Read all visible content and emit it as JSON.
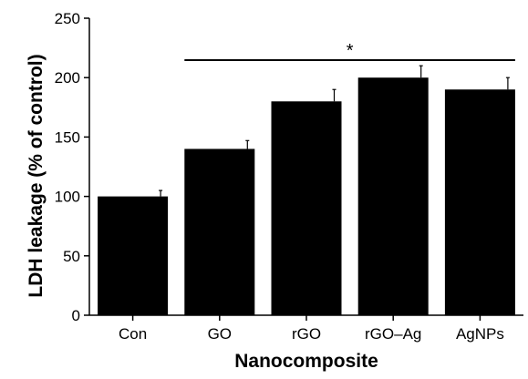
{
  "chart_data": {
    "type": "bar",
    "categories": [
      "Con",
      "GO",
      "rGO",
      "rGO–Ag",
      "AgNPs"
    ],
    "values": [
      100,
      140,
      180,
      200,
      190
    ],
    "errors": [
      5,
      7,
      10,
      10,
      10
    ],
    "xlabel": "Nanocomposite",
    "ylabel": "LDH leakage (% of control)",
    "ylim": [
      0,
      250
    ],
    "yticks": [
      0,
      50,
      100,
      150,
      200,
      250
    ],
    "grid": false,
    "bar_color": "#000000",
    "annotations": [
      {
        "text": "*",
        "from_category": "GO",
        "to_category": "AgNPs"
      }
    ]
  }
}
